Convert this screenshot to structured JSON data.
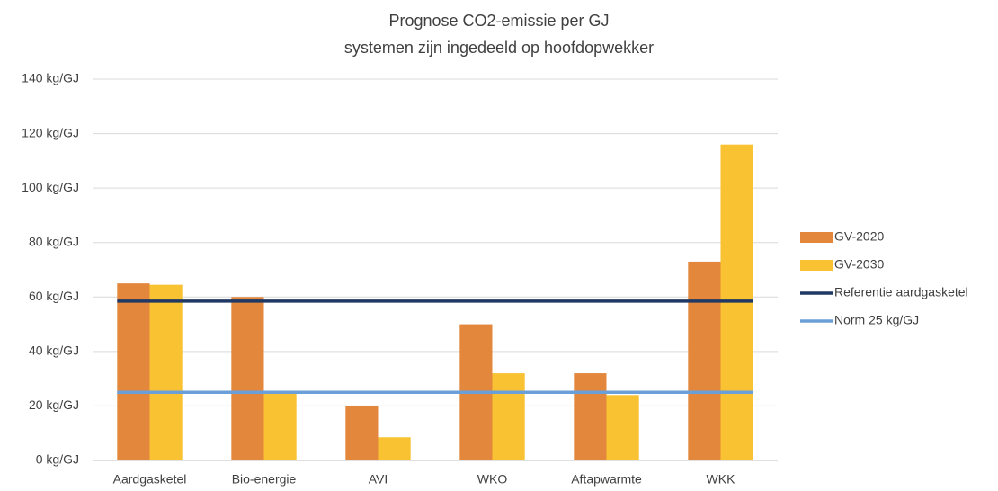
{
  "chart_data": {
    "type": "bar",
    "title": [
      "Prognose CO2-emissie per GJ",
      "systemen zijn ingedeeld op hoofdopwekker"
    ],
    "categories": [
      "Aardgasketel",
      "Bio-energie",
      "AVI",
      "WKO",
      "Aftapwarmte",
      "WKK"
    ],
    "series": [
      {
        "name": "GV-2020",
        "color": "#e3873c",
        "values": [
          65,
          60,
          20,
          50,
          32,
          73
        ]
      },
      {
        "name": "GV-2030",
        "color": "#f9c232",
        "values": [
          64.5,
          25,
          8.5,
          32,
          24,
          116
        ]
      },
      {
        "name": "Referentie aardgasketel",
        "type": "line",
        "color": "#203864",
        "values": [
          58.5,
          58.5,
          58.5,
          58.5,
          58.5,
          58.5
        ]
      },
      {
        "name": "Norm 25 kg/GJ",
        "type": "line",
        "color": "#6a9fd8",
        "values": [
          25,
          25,
          25,
          25,
          25,
          25
        ]
      }
    ],
    "ylim": [
      0,
      140
    ],
    "yticks": [
      {
        "value": 0,
        "label": "0 kg/GJ"
      },
      {
        "value": 20,
        "label": "20 kg/GJ"
      },
      {
        "value": 40,
        "label": "40 kg/GJ"
      },
      {
        "value": 60,
        "label": "60 kg/GJ"
      },
      {
        "value": 80,
        "label": "80 kg/GJ"
      },
      {
        "value": 100,
        "label": "100 kg/GJ"
      },
      {
        "value": 120,
        "label": "120 kg/GJ"
      },
      {
        "value": 140,
        "label": "140 kg/GJ"
      }
    ],
    "grid": true,
    "legend": "right"
  }
}
